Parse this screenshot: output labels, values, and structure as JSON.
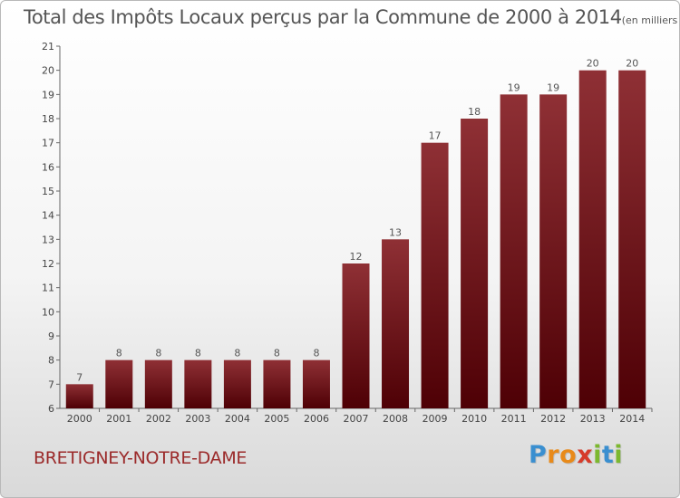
{
  "chart_data": {
    "type": "bar",
    "title": "Total des Impôts Locaux perçus par la Commune de 2000 à 2014",
    "subtitle": "(en milliers d'€)",
    "categories": [
      "2000",
      "2001",
      "2002",
      "2003",
      "2004",
      "2005",
      "2006",
      "2007",
      "2008",
      "2009",
      "2010",
      "2011",
      "2012",
      "2013",
      "2014"
    ],
    "values": [
      7,
      8,
      8,
      8,
      8,
      8,
      8,
      12,
      13,
      17,
      18,
      19,
      19,
      20,
      20
    ],
    "ylim": [
      6,
      21
    ],
    "yticks": [
      6,
      7,
      8,
      9,
      10,
      11,
      12,
      13,
      14,
      15,
      16,
      17,
      18,
      19,
      20,
      21
    ],
    "xlabel": "",
    "ylabel": "",
    "grid": false,
    "bar_color_light": "#8f3035",
    "bar_color_dark": "#4e0005"
  },
  "commune": "BRETIGNEY-NOTRE-DAME",
  "logo": {
    "letters": [
      "P",
      "r",
      "o",
      "x",
      "i",
      "t",
      "i"
    ],
    "colors": [
      "#3a8fd0",
      "#e88a1a",
      "#e88a1a",
      "#d63b2a",
      "#7cb82f",
      "#3a8fd0",
      "#7cb82f"
    ]
  }
}
